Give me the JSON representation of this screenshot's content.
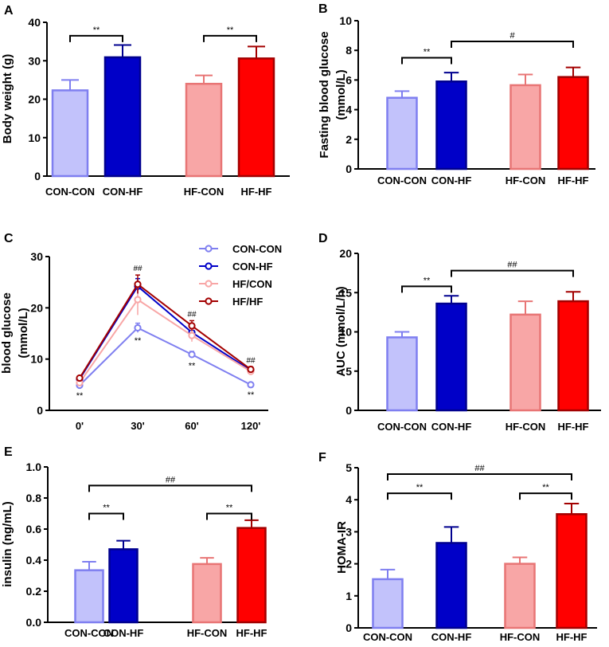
{
  "colors": {
    "con_con": "#c2c2fb",
    "con_con_edge": "#7f7ff0",
    "con_hf": "#0000c8",
    "con_hf_edge": "#00008f",
    "hf_con": "#f8a6a6",
    "hf_con_edge": "#e87575",
    "hf_hf": "#ff0000",
    "hf_hf_edge": "#a30000"
  },
  "chart_data": [
    {
      "panel": "A",
      "type": "bar",
      "categories": [
        "CON-CON",
        "CON-HF",
        "HF-CON",
        "HF-HF"
      ],
      "values": [
        22.3,
        30.9,
        24.0,
        30.6
      ],
      "errors": [
        2.7,
        3.2,
        2.2,
        3.1
      ],
      "ylabel": "Body weight (g)",
      "ylim": [
        0,
        40
      ],
      "yticks": [
        "0",
        "10",
        "20",
        "30",
        "40"
      ],
      "annotations": [
        {
          "from": 0,
          "to": 1,
          "label": "**",
          "level": 36.5
        },
        {
          "from": 2,
          "to": 3,
          "label": "**",
          "level": 36.5
        }
      ]
    },
    {
      "panel": "B",
      "type": "bar",
      "categories": [
        "CON-CON",
        "CON-HF",
        "HF-CON",
        "HF-HF"
      ],
      "values": [
        4.8,
        5.9,
        5.65,
        6.2
      ],
      "errors": [
        0.45,
        0.6,
        0.72,
        0.65
      ],
      "ylabel": "Fasting blood glucose (mmol/L)",
      "ylim": [
        0,
        10
      ],
      "yticks": [
        "0",
        "2",
        "4",
        "6",
        "8",
        "10"
      ],
      "annotations": [
        {
          "from": 0,
          "to": 1,
          "label": "**",
          "level": 7.5
        },
        {
          "from": 1,
          "to": 3,
          "label": "#",
          "level": 8.6
        }
      ]
    },
    {
      "panel": "C",
      "type": "line",
      "x": [
        "0'",
        "30'",
        "60'",
        "120'"
      ],
      "series": [
        {
          "name": "CON-CON",
          "values": [
            4.9,
            16.1,
            10.9,
            5.0
          ],
          "errors": [
            0.4,
            0.9,
            0.6,
            0.3
          ]
        },
        {
          "name": "CON-HF",
          "values": [
            6.1,
            24.2,
            15.2,
            7.8
          ],
          "errors": [
            0.4,
            1.5,
            1.0,
            0.5
          ]
        },
        {
          "name": "HF/CON",
          "values": [
            5.4,
            21.6,
            14.6,
            7.6
          ],
          "errors": [
            0.5,
            3.0,
            1.2,
            0.6
          ]
        },
        {
          "name": "HF/HF",
          "values": [
            6.3,
            24.6,
            16.5,
            8.0
          ],
          "errors": [
            0.4,
            1.8,
            1.0,
            0.5
          ]
        }
      ],
      "ylabel": "blood glucose (mmol/L)",
      "ylim": [
        0,
        30
      ],
      "yticks": [
        "0",
        "10",
        "20",
        "30"
      ],
      "legend": "top-right",
      "annotations": [
        {
          "x": 0,
          "below": "**"
        },
        {
          "x": 1,
          "above": "##",
          "below": "**"
        },
        {
          "x": 2,
          "above": "##",
          "below": "**"
        },
        {
          "x": 3,
          "above": "##",
          "below": "**"
        }
      ]
    },
    {
      "panel": "D",
      "type": "bar",
      "categories": [
        "CON-CON",
        "CON-HF",
        "HF-CON",
        "HF-HF"
      ],
      "values": [
        9.3,
        13.6,
        12.2,
        13.9
      ],
      "errors": [
        0.7,
        1.0,
        1.7,
        1.2
      ],
      "ylabel": "AUC (mmol/L/h)",
      "ylim": [
        0,
        20
      ],
      "yticks": [
        "0",
        "5",
        "10",
        "15",
        "20"
      ],
      "annotations": [
        {
          "from": 0,
          "to": 1,
          "label": "**",
          "level": 15.8
        },
        {
          "from": 1,
          "to": 3,
          "label": "##",
          "level": 17.8
        }
      ]
    },
    {
      "panel": "E",
      "type": "bar",
      "categories": [
        "CON-CON",
        "CON-HF",
        "HF-CON",
        "HF-HF"
      ],
      "values": [
        0.335,
        0.47,
        0.375,
        0.607
      ],
      "errors": [
        0.055,
        0.055,
        0.04,
        0.05
      ],
      "ylabel": "insulin (ng/mL)",
      "ylim": [
        0,
        1.0
      ],
      "yticks": [
        "0.0",
        "0.2",
        "0.4",
        "0.6",
        "0.8",
        "1.0"
      ],
      "annotations": [
        {
          "from": 0,
          "to": 1,
          "label": "**",
          "level": 0.7
        },
        {
          "from": 2,
          "to": 3,
          "label": "**",
          "level": 0.7
        },
        {
          "from": 0,
          "to": 3,
          "label": "##",
          "level": 0.88
        }
      ]
    },
    {
      "panel": "F",
      "type": "bar",
      "categories": [
        "CON-CON",
        "CON-HF",
        "HF-CON",
        "HF-HF"
      ],
      "values": [
        1.52,
        2.65,
        2.0,
        3.55
      ],
      "errors": [
        0.3,
        0.5,
        0.2,
        0.33
      ],
      "ylabel": "HOMA-IR",
      "ylim": [
        0,
        5
      ],
      "yticks": [
        "0",
        "1",
        "2",
        "3",
        "4",
        "5"
      ],
      "annotations": [
        {
          "from": 0,
          "to": 1,
          "label": "**",
          "level": 4.2
        },
        {
          "from": 2,
          "to": 3,
          "label": "**",
          "level": 4.2
        },
        {
          "from": 0,
          "to": 3,
          "label": "##",
          "level": 4.8
        }
      ]
    }
  ]
}
